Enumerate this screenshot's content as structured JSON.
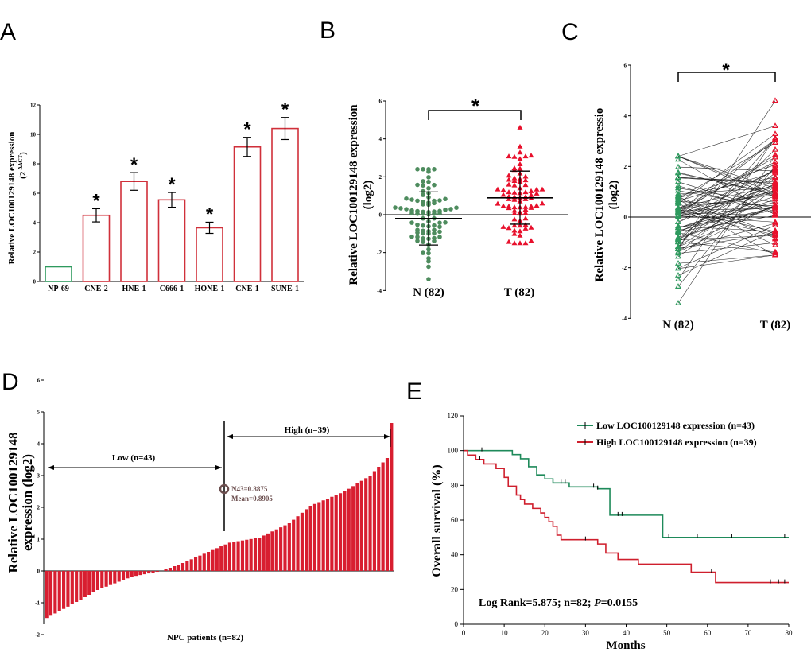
{
  "panels": {
    "A": "A",
    "B": "B",
    "C": "C",
    "D": "D",
    "E": "E"
  },
  "colors": {
    "bar_outline": "#d0303a",
    "control": "#2e9a5e",
    "tumor": "#e8102c",
    "green_dot": "#4e8c5e",
    "d_bar": "#d81e30",
    "low_line": "#1e8a5a",
    "high_line": "#cf1f2d"
  },
  "significance": "*",
  "chart_data": [
    {
      "panel": "A",
      "type": "bar",
      "title": "",
      "ylabel": "Relative LOC100129148  expression",
      "ylabel_formula": "(2",
      "ylabel_formula_sup": "-ΔΔCT",
      "ylabel_formula_end": ")",
      "ylim": [
        0,
        12
      ],
      "yticks": [
        "0",
        "2",
        "4",
        "6",
        "8",
        "10",
        "12"
      ],
      "categories": [
        "NP-69",
        "CNE-2",
        "HNE-1",
        "C666-1",
        "HONE-1",
        "CNE-1",
        "SUNE-1"
      ],
      "values": [
        1.0,
        4.5,
        6.8,
        5.55,
        3.65,
        9.15,
        10.4
      ],
      "errors": [
        0,
        0.45,
        0.6,
        0.5,
        0.38,
        0.65,
        0.75
      ],
      "significant": [
        false,
        true,
        true,
        true,
        true,
        true,
        true
      ]
    },
    {
      "panel": "B",
      "type": "scatter",
      "ylabel": "Relative LOC100129148 expression",
      "ylabel2": "(log2)",
      "ylim": [
        -4,
        6
      ],
      "yticks": [
        "-4",
        "-2",
        "0",
        "2",
        "4",
        "6"
      ],
      "categories": [
        "N (82)",
        "T (82)"
      ],
      "means": [
        -0.2,
        0.89
      ],
      "sd_upper": [
        1.2,
        2.3
      ],
      "sd_lower": [
        -1.6,
        -0.5
      ]
    },
    {
      "panel": "C",
      "type": "line",
      "ylabel": "Relative LOC100129148  expressio",
      "ylabel2": "(log2)",
      "ylim": [
        -4,
        6
      ],
      "yticks": [
        "-4",
        "-2",
        "0",
        "2",
        "4",
        "6"
      ],
      "categories": [
        "N (82)",
        "T (82)"
      ]
    },
    {
      "panel": "D",
      "type": "bar",
      "ylabel": "Relative LOC100129148",
      "ylabel2": "expression (log2)",
      "xlabel": "NPC patients (n=82)",
      "ylim": [
        -2,
        6
      ],
      "yticks": [
        "-2",
        "-1",
        "0",
        "1",
        "2",
        "3",
        "4",
        "5",
        "6"
      ],
      "n": 82,
      "min": -1.48,
      "max": 4.65,
      "split_index": 43,
      "low_label": "Low (n=43)",
      "high_label": "High (n=39)",
      "annotation_line1": "N43=0.8875",
      "annotation_line2": "Mean=0.8905",
      "threshold": 0.8875
    },
    {
      "panel": "E",
      "type": "line",
      "xlabel": "Months",
      "ylabel": "Overall survival (%)",
      "xlim": [
        0,
        80
      ],
      "ylim": [
        0,
        120
      ],
      "xticks": [
        "0",
        "10",
        "20",
        "30",
        "40",
        "50",
        "60",
        "70",
        "80"
      ],
      "yticks": [
        "0",
        "20",
        "40",
        "60",
        "80",
        "100",
        "120"
      ],
      "legend": [
        "Low LOC100129148 expression (n=43)",
        "High LOC100129148 expression (n=39)"
      ],
      "legend_position": "top-right",
      "stat_text_a": "Log Rank=5.875; n=82;",
      "stat_text_p": "P",
      "stat_text_b": "=0.0155",
      "series": [
        {
          "name": "Low LOC100129148 expression (n=43)",
          "x": [
            0,
            5,
            8,
            12,
            14,
            16,
            18,
            20,
            22,
            26,
            33,
            36,
            49,
            80
          ],
          "y": [
            100,
            100,
            100,
            97.7,
            95.3,
            90.7,
            86,
            83.7,
            81.4,
            79.1,
            78,
            62.8,
            50,
            50
          ],
          "censor_x": [
            4.5,
            24,
            25,
            32,
            33,
            38,
            39,
            50.5,
            57.5,
            66,
            79
          ]
        },
        {
          "name": "High LOC100129148 expression (n=39)",
          "x": [
            0,
            1,
            3,
            5,
            8,
            10,
            11,
            13,
            14,
            15,
            17,
            19,
            20,
            21,
            22,
            23,
            24,
            33,
            35,
            38,
            43,
            56,
            62,
            80
          ],
          "y": [
            100,
            97.4,
            94.9,
            92.3,
            89.7,
            84.6,
            79.5,
            74.4,
            71.8,
            69.2,
            66.7,
            64.1,
            61.5,
            59,
            56.4,
            51.3,
            48.7,
            46.2,
            41,
            37.3,
            34.6,
            30,
            24,
            24
          ],
          "censor_x": [
            4,
            30,
            61,
            75.5,
            77.5,
            79
          ]
        }
      ]
    }
  ]
}
